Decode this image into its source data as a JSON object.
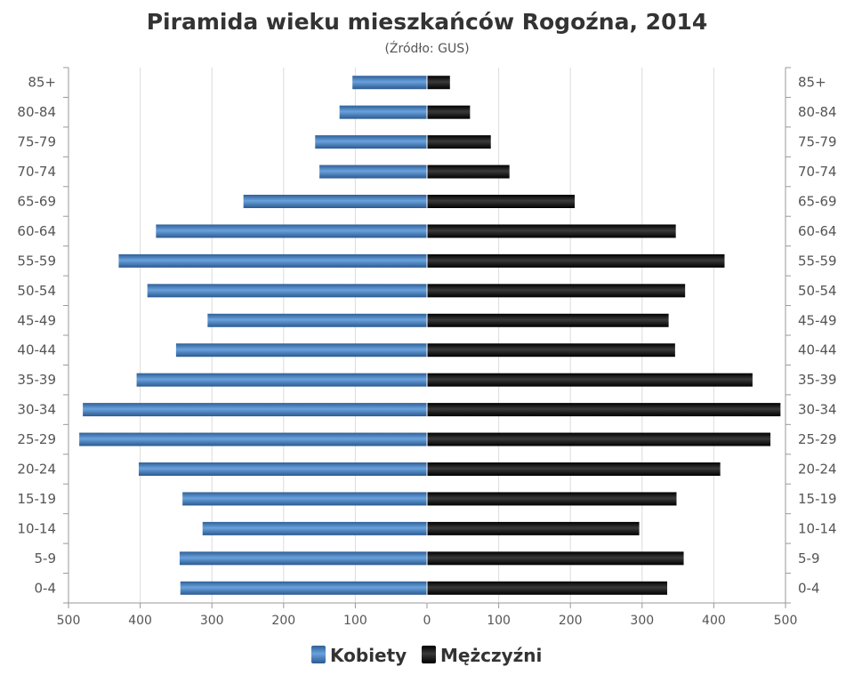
{
  "chart_data": {
    "type": "bar",
    "title": "Piramida wieku mieszkańców Rogoźna, 2014",
    "subtitle": "(Źródło: GUS)",
    "categories": [
      "85+",
      "80-84",
      "75-79",
      "70-74",
      "65-69",
      "60-64",
      "55-59",
      "50-54",
      "45-49",
      "40-44",
      "35-39",
      "30-34",
      "25-29",
      "20-24",
      "15-19",
      "10-14",
      "5-9",
      "0-4"
    ],
    "series": [
      {
        "name": "Kobiety",
        "color": "#3f7bbf",
        "values": [
          104,
          122,
          156,
          150,
          256,
          378,
          430,
          390,
          306,
          350,
          405,
          480,
          485,
          402,
          341,
          313,
          345,
          344
        ]
      },
      {
        "name": "Mężczyźni",
        "color": "#1a1a1a",
        "values": [
          32,
          60,
          89,
          115,
          206,
          347,
          415,
          360,
          337,
          346,
          454,
          493,
          479,
          409,
          348,
          296,
          358,
          335
        ]
      }
    ],
    "xlim": [
      -500,
      500
    ],
    "x_ticks": [
      500,
      400,
      300,
      200,
      100,
      0,
      100,
      200,
      300,
      400,
      500
    ],
    "grid": true,
    "legend_position": "bottom-center"
  }
}
